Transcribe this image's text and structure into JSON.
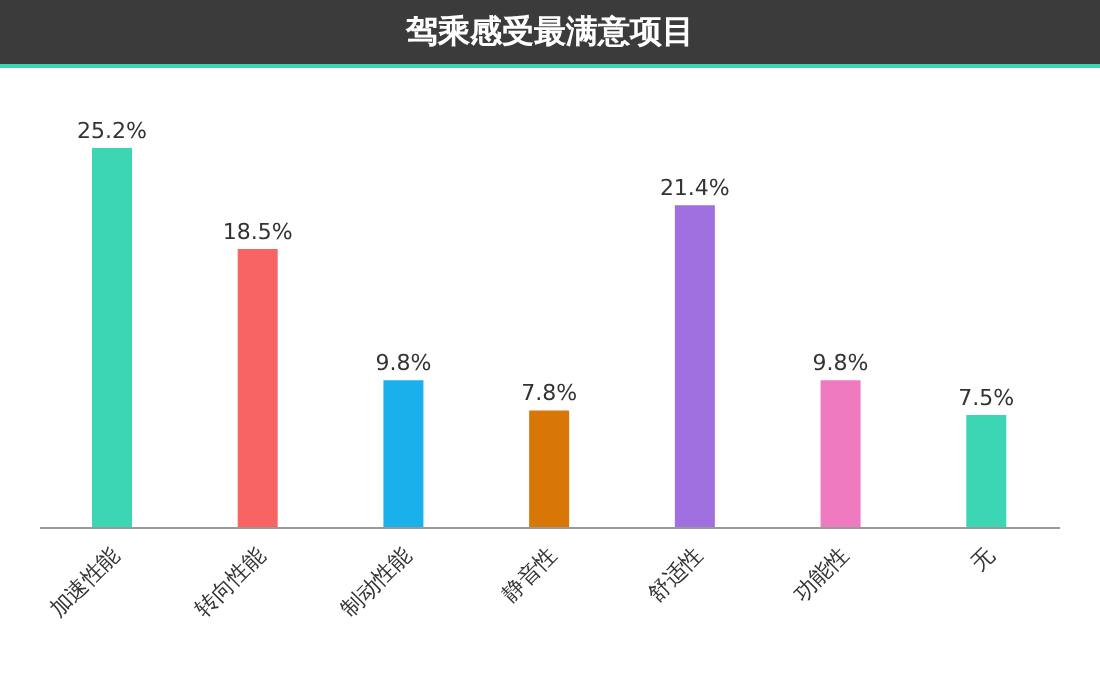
{
  "chart_data": {
    "type": "bar",
    "title": "驾乘感受最满意项目",
    "categories": [
      "加速性能",
      "转向性能",
      "制动性能",
      "静音性",
      "舒适性",
      "功能性",
      "无"
    ],
    "values": [
      25.2,
      18.5,
      9.8,
      7.8,
      21.4,
      9.8,
      7.5
    ],
    "value_labels": [
      "25.2%",
      "18.5%",
      "9.8%",
      "7.8%",
      "21.4%",
      "9.8%",
      "7.5%"
    ],
    "colors": [
      "#3dd6b5",
      "#f86464",
      "#1ab0ec",
      "#d97706",
      "#a070e0",
      "#ef7abf",
      "#3dd6b5"
    ],
    "grid": false,
    "legend": false
  }
}
